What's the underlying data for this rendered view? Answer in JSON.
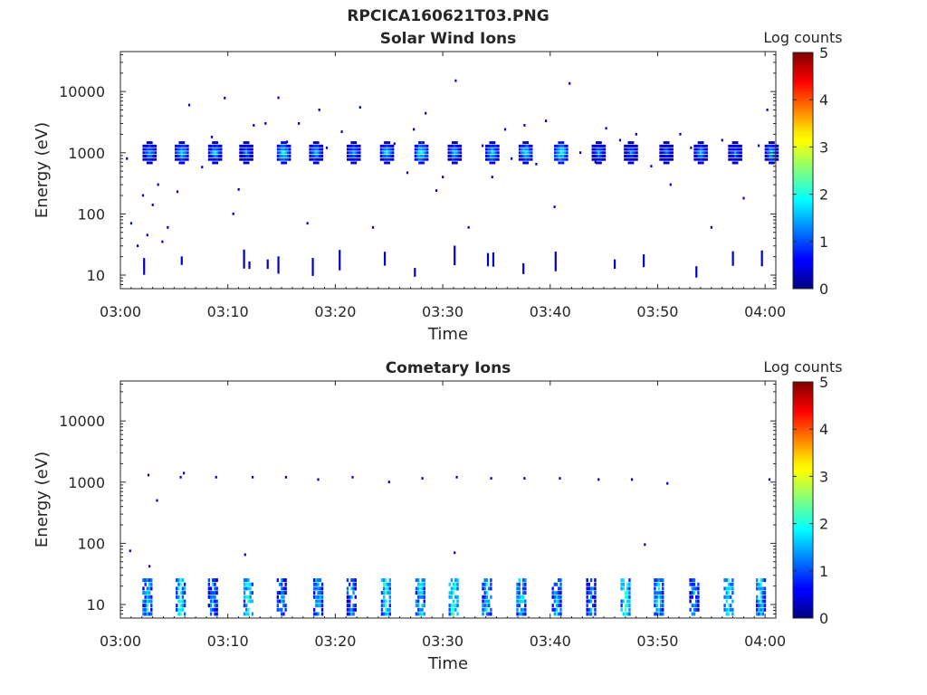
{
  "figure": {
    "filename": "RPCICA160621T03.PNG"
  },
  "chart_data": [
    {
      "type": "heatmap",
      "title": "Solar Wind Ions",
      "xlabel": "Time",
      "ylabel": "Energy (eV)",
      "x_ticks": [
        "03:00",
        "03:10",
        "03:20",
        "03:30",
        "03:40",
        "03:50",
        "04:00"
      ],
      "x_range_minutes": [
        0,
        61
      ],
      "y_scale": "log",
      "y_ticks": [
        10,
        100,
        1000,
        10000
      ],
      "y_tick_labels": [
        "10",
        "100",
        "1000",
        "10000"
      ],
      "y_range": [
        6,
        45000
      ],
      "colorbar": {
        "label": "Log counts",
        "range": [
          0,
          5
        ],
        "ticks": [
          "0",
          "1",
          "2",
          "3",
          "4",
          "5"
        ],
        "colormap": "jet"
      },
      "bursts_center_minutes": [
        2.7,
        5.7,
        8.8,
        11.7,
        15.2,
        18.2,
        21.7,
        24.8,
        28.0,
        31.1,
        34.6,
        37.7,
        41.0,
        44.5,
        47.5,
        50.8,
        54.0,
        57.2,
        60.6
      ],
      "burst_energy_ev": 1000,
      "burst_peak_log_counts": [
        1.6,
        1.8,
        1.7,
        1.4,
        1.9,
        1.7,
        1.6,
        1.8,
        2.0,
        1.7,
        1.8,
        1.9,
        2.0,
        1.5,
        1.4,
        1.3,
        1.6,
        1.4,
        1.7
      ],
      "low_energy_streaks_minutes": [
        2.2,
        5.7,
        11.5,
        12.0,
        13.7,
        14.7,
        17.9,
        20.4,
        24.6,
        27.4,
        31.1,
        34.2,
        34.7,
        37.5,
        40.5,
        46.0,
        48.7,
        53.6,
        57.0,
        59.7
      ],
      "sparse_points": [
        [
          0.6,
          800
        ],
        [
          1.0,
          70
        ],
        [
          1.6,
          30
        ],
        [
          2.1,
          200
        ],
        [
          2.5,
          45
        ],
        [
          3.0,
          140
        ],
        [
          3.5,
          300
        ],
        [
          3.9,
          35
        ],
        [
          4.4,
          60
        ],
        [
          5.3,
          230
        ],
        [
          6.4,
          6000
        ],
        [
          7.6,
          580
        ],
        [
          8.5,
          1800
        ],
        [
          9.7,
          7800
        ],
        [
          10.5,
          100
        ],
        [
          11.0,
          250
        ],
        [
          12.4,
          2800
        ],
        [
          13.5,
          3000
        ],
        [
          14.7,
          7900
        ],
        [
          15.5,
          1500
        ],
        [
          16.6,
          3000
        ],
        [
          17.4,
          70
        ],
        [
          18.5,
          5000
        ],
        [
          19.2,
          1200
        ],
        [
          20.6,
          2200
        ],
        [
          22.3,
          5500
        ],
        [
          23.5,
          60
        ],
        [
          25.5,
          1400
        ],
        [
          26.7,
          470
        ],
        [
          27.3,
          2400
        ],
        [
          28.4,
          4400
        ],
        [
          29.4,
          240
        ],
        [
          30.0,
          400
        ],
        [
          31.2,
          15000
        ],
        [
          32.4,
          60
        ],
        [
          33.7,
          1300
        ],
        [
          34.6,
          400
        ],
        [
          35.8,
          2400
        ],
        [
          36.4,
          800
        ],
        [
          37.6,
          2800
        ],
        [
          38.7,
          650
        ],
        [
          39.6,
          3300
        ],
        [
          40.4,
          130
        ],
        [
          41.8,
          13500
        ],
        [
          42.8,
          1000
        ],
        [
          44.2,
          700
        ],
        [
          45.2,
          2500
        ],
        [
          46.5,
          1600
        ],
        [
          48.0,
          2000
        ],
        [
          49.4,
          600
        ],
        [
          51.2,
          300
        ],
        [
          52.1,
          2000
        ],
        [
          53.1,
          1200
        ],
        [
          55.0,
          60
        ],
        [
          56.0,
          1600
        ],
        [
          58.0,
          180
        ],
        [
          59.4,
          1300
        ],
        [
          60.2,
          5000
        ]
      ]
    },
    {
      "type": "heatmap",
      "title": "Cometary Ions",
      "xlabel": "Time",
      "ylabel": "Energy (eV)",
      "x_ticks": [
        "03:00",
        "03:10",
        "03:20",
        "03:30",
        "03:40",
        "03:50",
        "04:00"
      ],
      "x_range_minutes": [
        0,
        61
      ],
      "y_scale": "log",
      "y_ticks": [
        10,
        100,
        1000,
        10000
      ],
      "y_tick_labels": [
        "10",
        "100",
        "1000",
        "10000"
      ],
      "y_range": [
        6,
        45000
      ],
      "colorbar": {
        "label": "Log counts",
        "range": [
          0,
          5
        ],
        "ticks": [
          "0",
          "1",
          "2",
          "3",
          "4",
          "5"
        ],
        "colormap": "jet"
      },
      "bursts_center_minutes": [
        2.5,
        5.6,
        8.6,
        11.9,
        15.0,
        18.4,
        21.5,
        24.7,
        27.9,
        31.0,
        34.1,
        37.3,
        40.6,
        43.8,
        47.0,
        50.1,
        53.4,
        56.6,
        59.6
      ],
      "burst_energy_range_ev": [
        7,
        25
      ],
      "burst_peak_log_counts": [
        1.6,
        1.8,
        1.3,
        1.9,
        1.3,
        1.5,
        1.4,
        1.9,
        1.7,
        2.0,
        1.6,
        1.7,
        1.5,
        1.2,
        2.0,
        1.6,
        1.3,
        1.8,
        1.7
      ],
      "sparse_points": [
        [
          0.9,
          75
        ],
        [
          2.6,
          1300
        ],
        [
          2.7,
          42
        ],
        [
          3.4,
          500
        ],
        [
          5.6,
          1200
        ],
        [
          5.9,
          1400
        ],
        [
          8.9,
          1200
        ],
        [
          11.6,
          65
        ],
        [
          12.3,
          1200
        ],
        [
          15.4,
          1200
        ],
        [
          18.4,
          1100
        ],
        [
          21.6,
          1200
        ],
        [
          25.0,
          1000
        ],
        [
          28.1,
          1150
        ],
        [
          31.1,
          70
        ],
        [
          31.3,
          1200
        ],
        [
          34.5,
          1150
        ],
        [
          37.6,
          1150
        ],
        [
          40.9,
          1150
        ],
        [
          44.5,
          1100
        ],
        [
          47.6,
          1100
        ],
        [
          48.8,
          95
        ],
        [
          50.9,
          950
        ],
        [
          60.4,
          1100
        ]
      ]
    }
  ]
}
